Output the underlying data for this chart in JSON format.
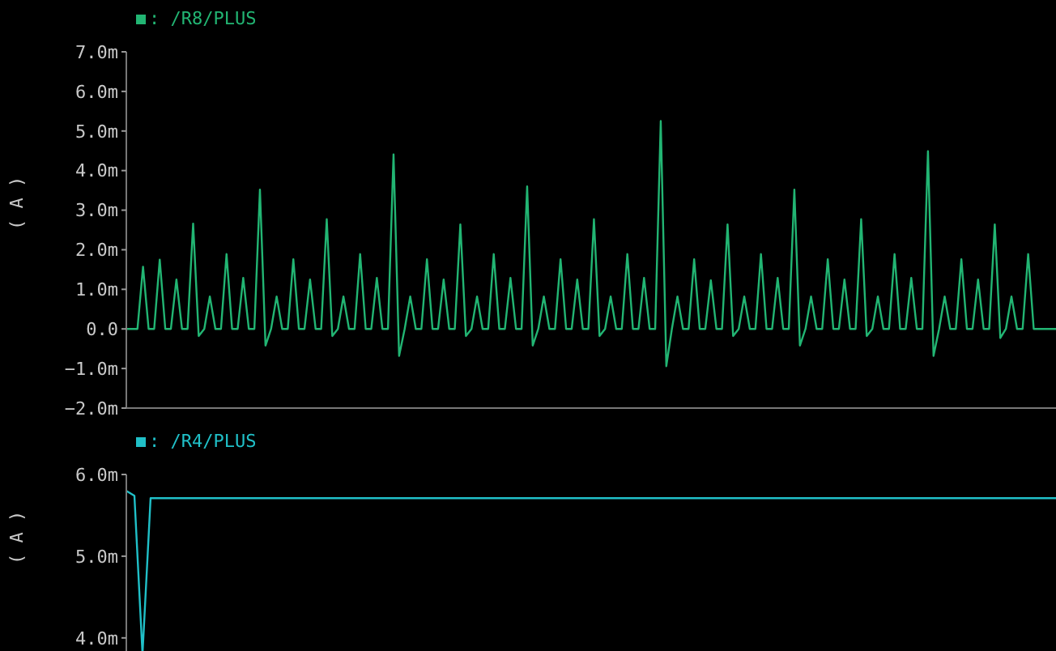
{
  "chart_data": [
    {
      "type": "line",
      "ylabel": "( A )",
      "legend": "top left",
      "marker": "none",
      "line_style": "solid",
      "tick_labels": "y",
      "grid": false,
      "ylim": [
        -2,
        7
      ],
      "yticks": [
        {
          "value": -2,
          "label": "−2.0m"
        },
        {
          "value": -1,
          "label": "−1.0m"
        },
        {
          "value": 0,
          "label": "0.0"
        },
        {
          "value": 1,
          "label": "1.0m"
        },
        {
          "value": 2,
          "label": "2.0m"
        },
        {
          "value": 3,
          "label": "3.0m"
        },
        {
          "value": 4,
          "label": "4.0m"
        },
        {
          "value": 5,
          "label": "5.0m"
        },
        {
          "value": 6,
          "label": "6.0m"
        },
        {
          "value": 7,
          "label": "7.0m"
        }
      ],
      "categories": [
        null,
        null,
        null,
        null,
        null,
        null,
        null,
        null,
        null,
        null,
        null,
        null,
        null,
        null,
        null,
        null,
        null,
        null,
        null,
        null,
        null,
        null,
        null,
        null,
        null,
        null,
        null,
        null,
        null,
        null,
        null,
        null,
        null,
        null,
        null,
        null,
        null,
        null,
        null,
        null,
        null,
        null,
        null,
        null,
        null,
        null,
        null,
        null,
        null,
        null,
        null,
        null,
        null,
        null,
        null,
        null,
        null,
        null,
        null,
        null,
        null,
        null,
        null,
        null,
        null,
        null,
        null,
        null,
        null,
        null,
        null,
        null,
        null,
        null,
        null,
        null,
        null,
        null,
        null,
        null,
        null,
        null,
        null,
        null,
        null,
        null,
        null,
        null,
        null,
        null,
        null,
        null,
        null,
        null,
        null,
        null,
        null,
        null,
        null,
        null,
        null,
        null,
        null,
        null,
        null,
        null,
        null,
        null,
        null,
        null,
        null,
        null,
        null,
        null,
        null,
        null,
        null,
        null,
        null,
        null,
        null,
        null,
        null,
        null,
        null,
        null,
        null,
        null,
        null,
        null,
        null,
        null,
        null,
        null,
        null,
        null,
        null,
        null,
        null,
        null,
        null,
        null,
        null,
        null,
        null,
        null,
        null,
        null,
        null,
        null,
        null,
        null,
        null,
        null,
        null,
        null,
        null,
        null,
        null,
        null,
        null,
        null,
        null,
        null,
        null,
        null,
        null,
        null
      ],
      "series": [
        {
          "name": ": /R8/PLUS",
          "color": "#22b573",
          "values": [
            0,
            0,
            0,
            1.57,
            0,
            0,
            1.75,
            0,
            0,
            1.25,
            0,
            0,
            2.66,
            -0.18,
            0,
            0.82,
            0,
            0,
            1.89,
            0,
            0,
            1.29,
            0,
            0,
            3.52,
            -0.42,
            0,
            0.82,
            0,
            0,
            1.76,
            0,
            0,
            1.25,
            0,
            0,
            2.77,
            -0.18,
            0,
            0.82,
            0,
            0,
            1.89,
            0,
            0,
            1.29,
            0,
            0,
            4.41,
            -0.68,
            0,
            0.82,
            0,
            0,
            1.76,
            0,
            0,
            1.25,
            0,
            0,
            2.64,
            -0.18,
            0,
            0.82,
            0,
            0,
            1.89,
            0,
            0,
            1.29,
            0,
            0,
            3.6,
            -0.42,
            0,
            0.82,
            0,
            0,
            1.76,
            0,
            0,
            1.25,
            0,
            0,
            2.77,
            -0.18,
            0,
            0.82,
            0,
            0,
            1.89,
            0,
            0,
            1.29,
            0,
            0,
            5.25,
            -0.94,
            0,
            0.82,
            0,
            0,
            1.76,
            0,
            0,
            1.23,
            0,
            0,
            2.64,
            -0.18,
            0,
            0.82,
            0,
            0,
            1.89,
            0,
            0,
            1.29,
            0,
            0,
            3.52,
            -0.42,
            0,
            0.82,
            0,
            0,
            1.76,
            0,
            0,
            1.25,
            0,
            0,
            2.77,
            -0.18,
            0,
            0.82,
            0,
            0,
            1.89,
            0,
            0,
            1.29,
            0,
            0,
            4.49,
            -0.68,
            0,
            0.82,
            0,
            0,
            1.76,
            0,
            0,
            1.25,
            0,
            0,
            2.64,
            -0.23,
            0,
            0.82,
            0,
            0,
            1.89,
            0,
            0,
            0,
            0,
            0
          ]
        }
      ]
    },
    {
      "type": "line",
      "ylabel": "( A )",
      "legend": "top left",
      "marker": "none",
      "line_style": "solid",
      "tick_labels": "y",
      "grid": false,
      "ylim": [
        3.8,
        6
      ],
      "yticks": [
        {
          "value": 4,
          "label": "4.0m"
        },
        {
          "value": 5,
          "label": "5.0m"
        },
        {
          "value": 6,
          "label": "6.0m"
        }
      ],
      "categories": [
        null,
        null,
        null,
        null,
        null,
        null,
        null,
        null,
        null,
        null,
        null,
        null,
        null,
        null,
        null,
        null,
        null,
        null,
        null,
        null,
        null,
        null,
        null,
        null,
        null,
        null,
        null,
        null,
        null,
        null,
        null,
        null,
        null,
        null,
        null,
        null,
        null,
        null,
        null,
        null,
        null,
        null,
        null,
        null,
        null,
        null,
        null,
        null,
        null,
        null,
        null,
        null,
        null,
        null,
        null,
        null,
        null,
        null,
        null,
        null,
        null,
        null,
        null,
        null,
        null,
        null,
        null,
        null,
        null,
        null,
        null,
        null,
        null,
        null,
        null,
        null,
        null,
        null,
        null,
        null,
        null,
        null,
        null,
        null,
        null,
        null,
        null,
        null,
        null,
        null,
        null,
        null,
        null,
        null,
        null,
        null,
        null,
        null,
        null,
        null,
        null,
        null,
        null,
        null,
        null,
        null,
        null,
        null,
        null,
        null,
        null,
        null,
        null,
        null,
        null,
        null
      ],
      "series": [
        {
          "name": ": /R4/PLUS",
          "color": "#20c0c8",
          "values": [
            5.8,
            5.74,
            3.8,
            5.71,
            5.71,
            5.71,
            5.71,
            5.71,
            5.71,
            5.71,
            5.71,
            5.71,
            5.71,
            5.71,
            5.71,
            5.71,
            5.71,
            5.71,
            5.71,
            5.71,
            5.71,
            5.71,
            5.71,
            5.71,
            5.71,
            5.71,
            5.71,
            5.71,
            5.71,
            5.71,
            5.71,
            5.71,
            5.71,
            5.71,
            5.71,
            5.71,
            5.71,
            5.71,
            5.71,
            5.71,
            5.71,
            5.71,
            5.71,
            5.71,
            5.71,
            5.71,
            5.71,
            5.71,
            5.71,
            5.71,
            5.71,
            5.71,
            5.71,
            5.71,
            5.71,
            5.71,
            5.71,
            5.71,
            5.71,
            5.71,
            5.71,
            5.71,
            5.71,
            5.71,
            5.71,
            5.71,
            5.71,
            5.71,
            5.71,
            5.71,
            5.71,
            5.71,
            5.71,
            5.71,
            5.71,
            5.71,
            5.71,
            5.71,
            5.71,
            5.71,
            5.71,
            5.71,
            5.71,
            5.71,
            5.71,
            5.71,
            5.71,
            5.71,
            5.71,
            5.71,
            5.71,
            5.71,
            5.71,
            5.71,
            5.71,
            5.71,
            5.71,
            5.71,
            5.71,
            5.71,
            5.71,
            5.71,
            5.71,
            5.71,
            5.71,
            5.71,
            5.71,
            5.71,
            5.71,
            5.71,
            5.71,
            5.71,
            5.71,
            5.71,
            5.71,
            5.71
          ]
        }
      ]
    }
  ]
}
